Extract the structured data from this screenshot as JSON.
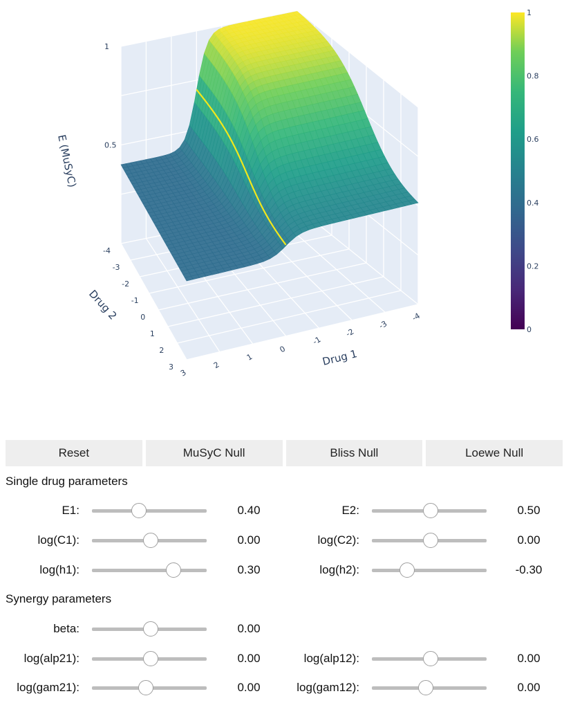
{
  "chart_data": {
    "type": "surface",
    "title": "",
    "xlabel": "Drug 1",
    "ylabel": "Drug 2",
    "zlabel": "E (MuSyC)",
    "x_ticks": [
      "3",
      "2",
      "1",
      "0",
      "-1",
      "-2",
      "-3",
      "-4"
    ],
    "y_ticks": [
      "-4",
      "-3",
      "-2",
      "-1",
      "0",
      "1",
      "2",
      "3"
    ],
    "z_ticks": [
      "0.5",
      "1"
    ],
    "colorbar": {
      "ticks": [
        "0",
        "0.2",
        "0.4",
        "0.6",
        "0.8",
        "1"
      ],
      "range": [
        0,
        1
      ],
      "colorscale": "viridis"
    },
    "model": {
      "E0": 1.0,
      "E1": 0.4,
      "E2": 0.5,
      "E3": 0.4,
      "logC1": 0.0,
      "logC2": 0.0,
      "h1": 2.0,
      "h2": 0.5
    },
    "x_range": [
      -4,
      3
    ],
    "y_range": [
      -4,
      3
    ],
    "z_range": [
      0,
      1
    ]
  },
  "buttons": {
    "reset": "Reset",
    "musyc": "MuSyC Null",
    "bliss": "Bliss Null",
    "loewe": "Loewe Null"
  },
  "sections": {
    "single": "Single drug parameters",
    "synergy": "Synergy parameters"
  },
  "params": {
    "E1": {
      "label": "E1:",
      "value": "0.40",
      "pos": 0.41
    },
    "E2": {
      "label": "E2:",
      "value": "0.50",
      "pos": 0.51
    },
    "logC1": {
      "label": "log(C1):",
      "value": "0.00",
      "pos": 0.51
    },
    "logC2": {
      "label": "log(C2):",
      "value": "0.00",
      "pos": 0.51
    },
    "logh1": {
      "label": "log(h1):",
      "value": "0.30",
      "pos": 0.71
    },
    "logh2": {
      "label": "log(h2):",
      "value": "-0.30",
      "pos": 0.31
    },
    "beta": {
      "label": "beta:",
      "value": "0.00",
      "pos": 0.51
    },
    "logalp21": {
      "label": "log(alp21):",
      "value": "0.00",
      "pos": 0.51
    },
    "logalp12": {
      "label": "log(alp12):",
      "value": "0.00",
      "pos": 0.51
    },
    "loggam21": {
      "label": "log(gam21):",
      "value": "0.00",
      "pos": 0.47
    },
    "loggam12": {
      "label": "log(gam12):",
      "value": "0.00",
      "pos": 0.47
    }
  }
}
